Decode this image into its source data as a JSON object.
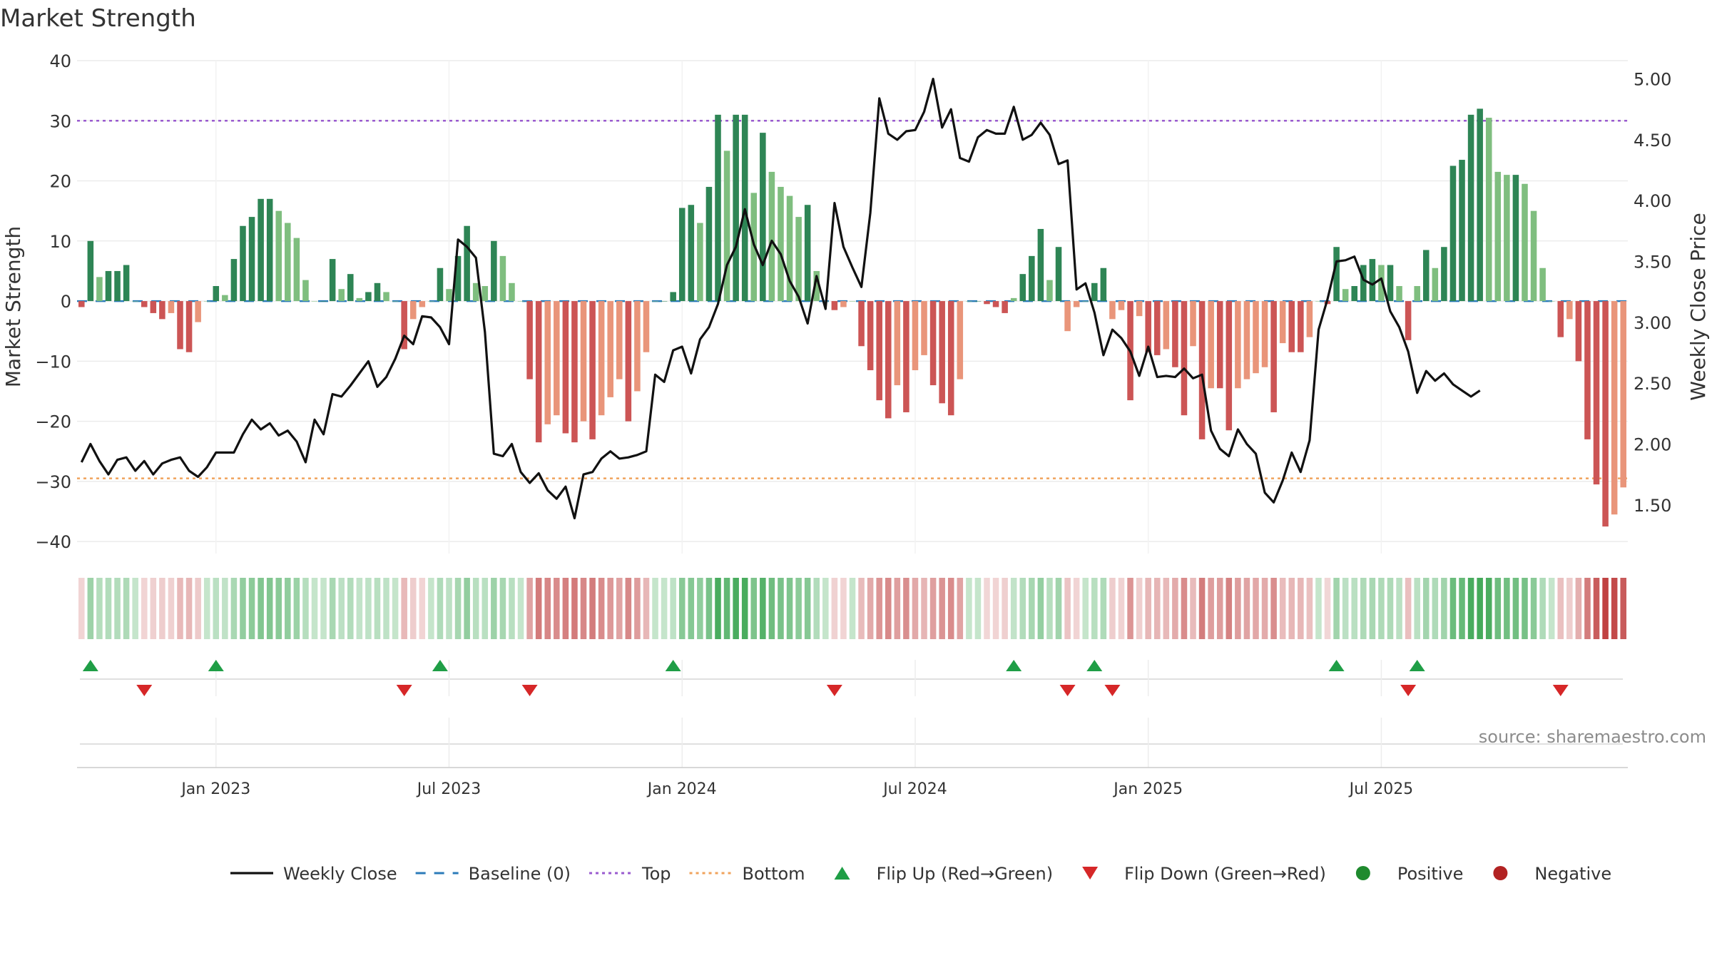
{
  "chart_data": {
    "type": "bar+line",
    "title": "Market Strength",
    "ylabel": "Market Strength",
    "y2label": "Weekly Close Price",
    "ylim": [
      -42,
      40
    ],
    "y2lim": [
      1.1,
      5.15
    ],
    "yticks": [
      40,
      30,
      20,
      10,
      0,
      -10,
      -20,
      -30,
      -40
    ],
    "yticklabels": [
      "40",
      "30",
      "20",
      "10",
      "0",
      "−10",
      "−20",
      "−30",
      "−40"
    ],
    "y2ticks": [
      5.0,
      4.5,
      4.0,
      3.5,
      3.0,
      2.5,
      2.0,
      1.5
    ],
    "y2ticklabels": [
      "5.00",
      "4.50",
      "4.00",
      "3.50",
      "3.00",
      "2.50",
      "2.00",
      "1.50"
    ],
    "xticklabels": [
      "Jan 2023",
      "Jul 2023",
      "Jan 2024",
      "Jul 2024",
      "Jan 2025",
      "Jul 2025"
    ],
    "xtick_week_index": [
      15,
      41,
      67,
      93,
      119,
      145
    ],
    "top_line": 30,
    "bottom_line": -29.5,
    "strength": [
      -1,
      10,
      4,
      5,
      5,
      6,
      0,
      -1,
      -2,
      -3,
      -2,
      -8,
      -8.5,
      -3.5,
      0,
      2.5,
      1,
      7,
      12.5,
      14,
      17,
      17,
      15,
      13,
      10.5,
      3.5,
      0,
      0,
      7,
      2,
      4.5,
      0.5,
      1.5,
      3,
      1.5,
      0,
      -8,
      -3,
      -1,
      0,
      5.5,
      2,
      7.5,
      12.5,
      3,
      2.5,
      10,
      7.5,
      3,
      0,
      -13,
      -23.5,
      -20.5,
      -19,
      -22,
      -23.5,
      -20,
      -23,
      -19,
      -16,
      -13,
      -20,
      -15,
      -8.5,
      0,
      0,
      1.5,
      15.5,
      16,
      13,
      19,
      31,
      25,
      31,
      31,
      18,
      28,
      21.5,
      19,
      17.5,
      14,
      16,
      5,
      0,
      -1.5,
      -1,
      0,
      -7.5,
      -11.5,
      -16.5,
      -19.5,
      -14,
      -18.5,
      -11.5,
      -9,
      -14,
      -17,
      -19,
      -13,
      0,
      0,
      -0.5,
      -1,
      -2,
      0.5,
      4.5,
      7.5,
      12,
      3.5,
      9,
      -5,
      -1,
      0,
      3,
      5.5,
      -3,
      -1.5,
      -16.5,
      -2.5,
      -8.5,
      -9,
      -8,
      -11,
      -19,
      -7.5,
      -23,
      -14.5,
      -14.5,
      -21.5,
      -14.5,
      -13,
      -12,
      -11,
      -18.5,
      -7,
      -8.5,
      -8.5,
      -6,
      0,
      -0.5,
      9,
      2,
      2.5,
      6,
      7,
      6,
      6,
      2.5,
      -6.5,
      2.5,
      8.5,
      5.5,
      9,
      22.5,
      23.5,
      31,
      32,
      30.5,
      21.5,
      21,
      21,
      19.5,
      15,
      5.5,
      0,
      -6,
      -3,
      -10,
      -23,
      -30.5,
      -37.5,
      -35.5,
      -31
    ],
    "weekly_close": [
      1.85,
      2.0,
      1.86,
      1.75,
      1.87,
      1.89,
      1.78,
      1.86,
      1.75,
      1.84,
      1.87,
      1.89,
      1.78,
      1.73,
      1.81,
      1.93,
      1.93,
      1.93,
      2.08,
      2.2,
      2.12,
      2.17,
      2.07,
      2.11,
      2.02,
      1.85,
      2.2,
      2.08,
      2.41,
      2.39,
      2.48,
      2.58,
      2.68,
      2.47,
      2.55,
      2.7,
      2.89,
      2.82,
      3.05,
      3.04,
      2.96,
      2.82,
      3.68,
      3.62,
      3.53,
      2.92,
      1.92,
      1.9,
      2.0,
      1.77,
      1.68,
      1.76,
      1.62,
      1.55,
      1.65,
      1.39,
      1.75,
      1.77,
      1.88,
      1.94,
      1.88,
      1.89,
      1.91,
      1.94,
      2.57,
      2.51,
      2.77,
      2.8,
      2.58,
      2.86,
      2.96,
      3.15,
      3.47,
      3.62,
      3.93,
      3.64,
      3.47,
      3.67,
      3.56,
      3.34,
      3.21,
      2.99,
      3.38,
      3.11,
      3.98,
      3.62,
      3.45,
      3.29,
      3.9,
      4.84,
      4.55,
      4.5,
      4.57,
      4.58,
      4.73,
      5.0,
      4.6,
      4.75,
      4.35,
      4.32,
      4.52,
      4.58,
      4.55,
      4.55,
      4.77,
      4.5,
      4.54,
      4.64,
      4.54,
      4.3,
      4.33,
      3.27,
      3.32,
      3.08,
      2.73,
      2.94,
      2.87,
      2.76,
      2.56,
      2.8,
      2.55,
      2.56,
      2.55,
      2.62,
      2.54,
      2.57,
      2.11,
      1.96,
      1.9,
      2.12,
      2.0,
      1.92,
      1.6,
      1.52,
      1.7,
      1.93,
      1.77,
      2.03,
      2.94,
      3.19,
      3.5,
      3.51,
      3.54,
      3.35,
      3.31,
      3.36,
      3.09,
      2.96,
      2.76,
      2.42,
      2.6,
      2.52,
      2.58,
      2.49,
      2.44,
      2.39,
      2.44
    ]
  },
  "legend": {
    "items": [
      {
        "label": "Weekly Close",
        "symbol": "solid-line",
        "color": "#111111"
      },
      {
        "label": "Baseline (0)",
        "symbol": "dashed-line",
        "color": "#2b7bb9"
      },
      {
        "label": "Top",
        "symbol": "dotted-line",
        "color": "#9a5bcf"
      },
      {
        "label": "Bottom",
        "symbol": "dotted-line",
        "color": "#f0a35c"
      },
      {
        "label": "Flip Up (Red→Green)",
        "symbol": "triangle-up",
        "color": "#1f9e46"
      },
      {
        "label": "Flip Down (Green→Red)",
        "symbol": "triangle-down",
        "color": "#d62728"
      },
      {
        "label": "Positive",
        "symbol": "circle",
        "color": "#1f8a2e"
      },
      {
        "label": "Negative",
        "symbol": "circle",
        "color": "#b22222"
      }
    ]
  },
  "source": "source: sharemaestro.com",
  "colors": {
    "pos_strong": "#2e8555",
    "pos_weak": "#7fbe7f",
    "neg_strong": "#cc5555",
    "neg_weak": "#e9957a",
    "close_line": "#111111",
    "baseline": "#2b7bb9",
    "top": "#9a5bcf",
    "bottom": "#f0a35c",
    "flip_up": "#1f9e46",
    "flip_down": "#d62728"
  }
}
